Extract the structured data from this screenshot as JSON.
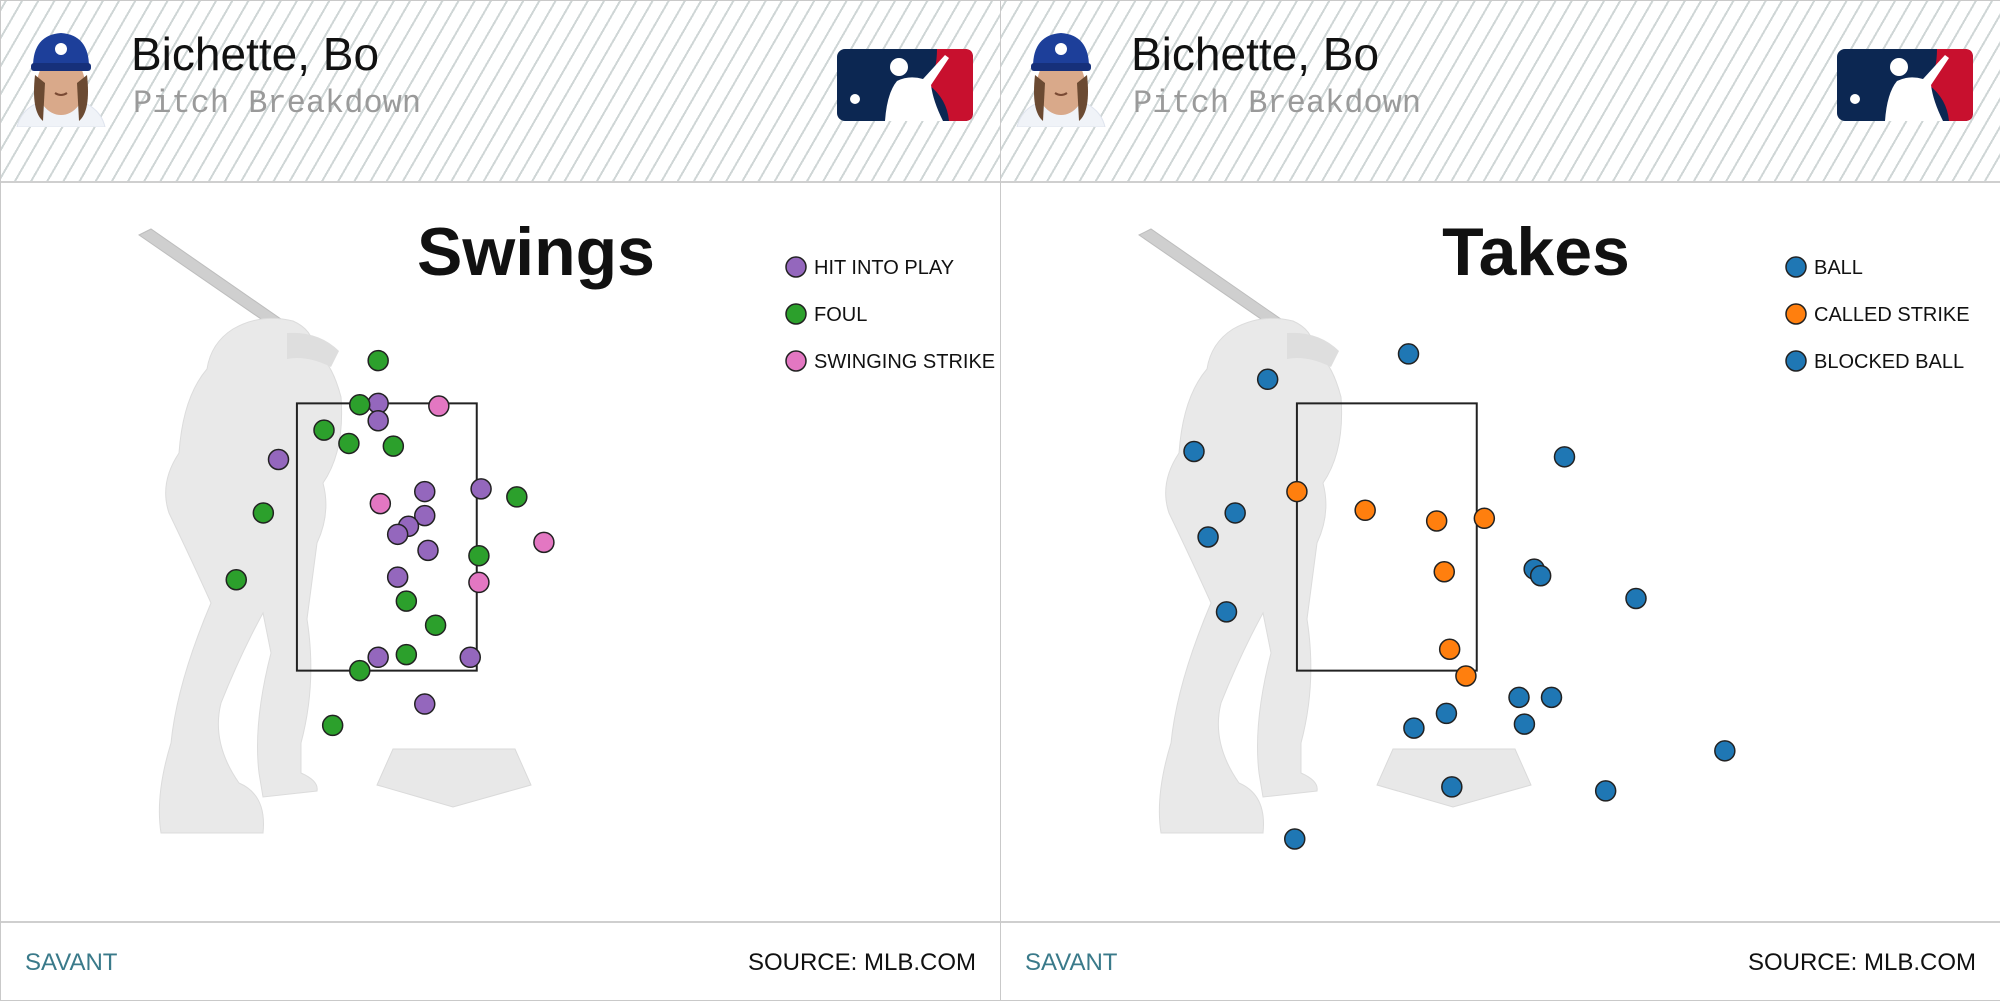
{
  "panels": [
    {
      "player_name": "Bichette, Bo",
      "subtitle": "Pitch Breakdown",
      "savant": "SAVANT",
      "source": "SOURCE: MLB.COM"
    },
    {
      "player_name": "Bichette, Bo",
      "subtitle": "Pitch Breakdown",
      "savant": "SAVANT",
      "source": "SOURCE: MLB.COM"
    }
  ],
  "chart_data": [
    {
      "type": "scatter",
      "title": "Swings",
      "legend_position": "top-right",
      "x_range": [
        -1.9,
        2.9
      ],
      "y_range": [
        0.3,
        4.7
      ],
      "strike_zone": {
        "x": [
          -0.83,
          0.83
        ],
        "y": [
          1.5,
          3.5
        ]
      },
      "series": [
        {
          "name": "HIT INTO PLAY",
          "color": "#9467bd",
          "points": [
            [
              -0.08,
              3.5
            ],
            [
              -0.08,
              3.37
            ],
            [
              -1.0,
              3.08
            ],
            [
              0.35,
              2.84
            ],
            [
              0.87,
              2.86
            ],
            [
              0.35,
              2.66
            ],
            [
              0.2,
              2.58
            ],
            [
              0.1,
              2.52
            ],
            [
              0.38,
              2.4
            ],
            [
              0.1,
              2.2
            ],
            [
              -0.08,
              1.6
            ],
            [
              0.77,
              1.6
            ],
            [
              0.35,
              1.25
            ]
          ]
        },
        {
          "name": "FOUL",
          "color": "#2ca02c",
          "points": [
            [
              -0.08,
              3.82
            ],
            [
              -0.25,
              3.49
            ],
            [
              -0.58,
              3.3
            ],
            [
              -0.35,
              3.2
            ],
            [
              0.06,
              3.18
            ],
            [
              1.2,
              2.8
            ],
            [
              -1.14,
              2.68
            ],
            [
              0.85,
              2.36
            ],
            [
              -1.39,
              2.18
            ],
            [
              0.18,
              2.02
            ],
            [
              0.45,
              1.84
            ],
            [
              0.18,
              1.62
            ],
            [
              -0.25,
              1.5
            ],
            [
              -0.5,
              1.09
            ]
          ]
        },
        {
          "name": "SWINGING STRIKE",
          "color": "#e377c2",
          "points": [
            [
              0.48,
              3.48
            ],
            [
              -0.06,
              2.75
            ],
            [
              1.45,
              2.46
            ],
            [
              0.85,
              2.16
            ]
          ]
        }
      ]
    },
    {
      "type": "scatter",
      "title": "Takes",
      "legend_position": "top-right",
      "x_range": [
        -1.9,
        2.9
      ],
      "y_range": [
        0.3,
        4.7
      ],
      "strike_zone": {
        "x": [
          -0.83,
          0.83
        ],
        "y": [
          1.5,
          3.5
        ]
      },
      "series": [
        {
          "name": "BALL",
          "color": "#1f77b4",
          "points": [
            [
              0.2,
              3.87
            ],
            [
              -1.1,
              3.68
            ],
            [
              -1.78,
              3.14
            ],
            [
              1.64,
              3.1
            ],
            [
              -1.4,
              2.68
            ],
            [
              -1.65,
              2.5
            ],
            [
              1.36,
              2.26
            ],
            [
              1.42,
              2.21
            ],
            [
              2.3,
              2.04
            ],
            [
              -1.48,
              1.94
            ],
            [
              1.22,
              1.3
            ],
            [
              1.52,
              1.3
            ],
            [
              0.55,
              1.18
            ],
            [
              1.27,
              1.1
            ],
            [
              0.25,
              1.07
            ],
            [
              3.12,
              0.9
            ],
            [
              0.6,
              0.63
            ],
            [
              2.02,
              0.6
            ],
            [
              -0.85,
              0.24
            ]
          ]
        },
        {
          "name": "CALLED STRIKE",
          "color": "#ff7f0e",
          "points": [
            [
              -0.83,
              2.84
            ],
            [
              -0.2,
              2.7
            ],
            [
              0.46,
              2.62
            ],
            [
              0.9,
              2.64
            ],
            [
              0.53,
              2.24
            ],
            [
              0.58,
              1.66
            ],
            [
              0.73,
              1.46
            ]
          ]
        },
        {
          "name": "BLOCKED BALL",
          "color": "#1f77b4",
          "points": []
        }
      ]
    }
  ]
}
